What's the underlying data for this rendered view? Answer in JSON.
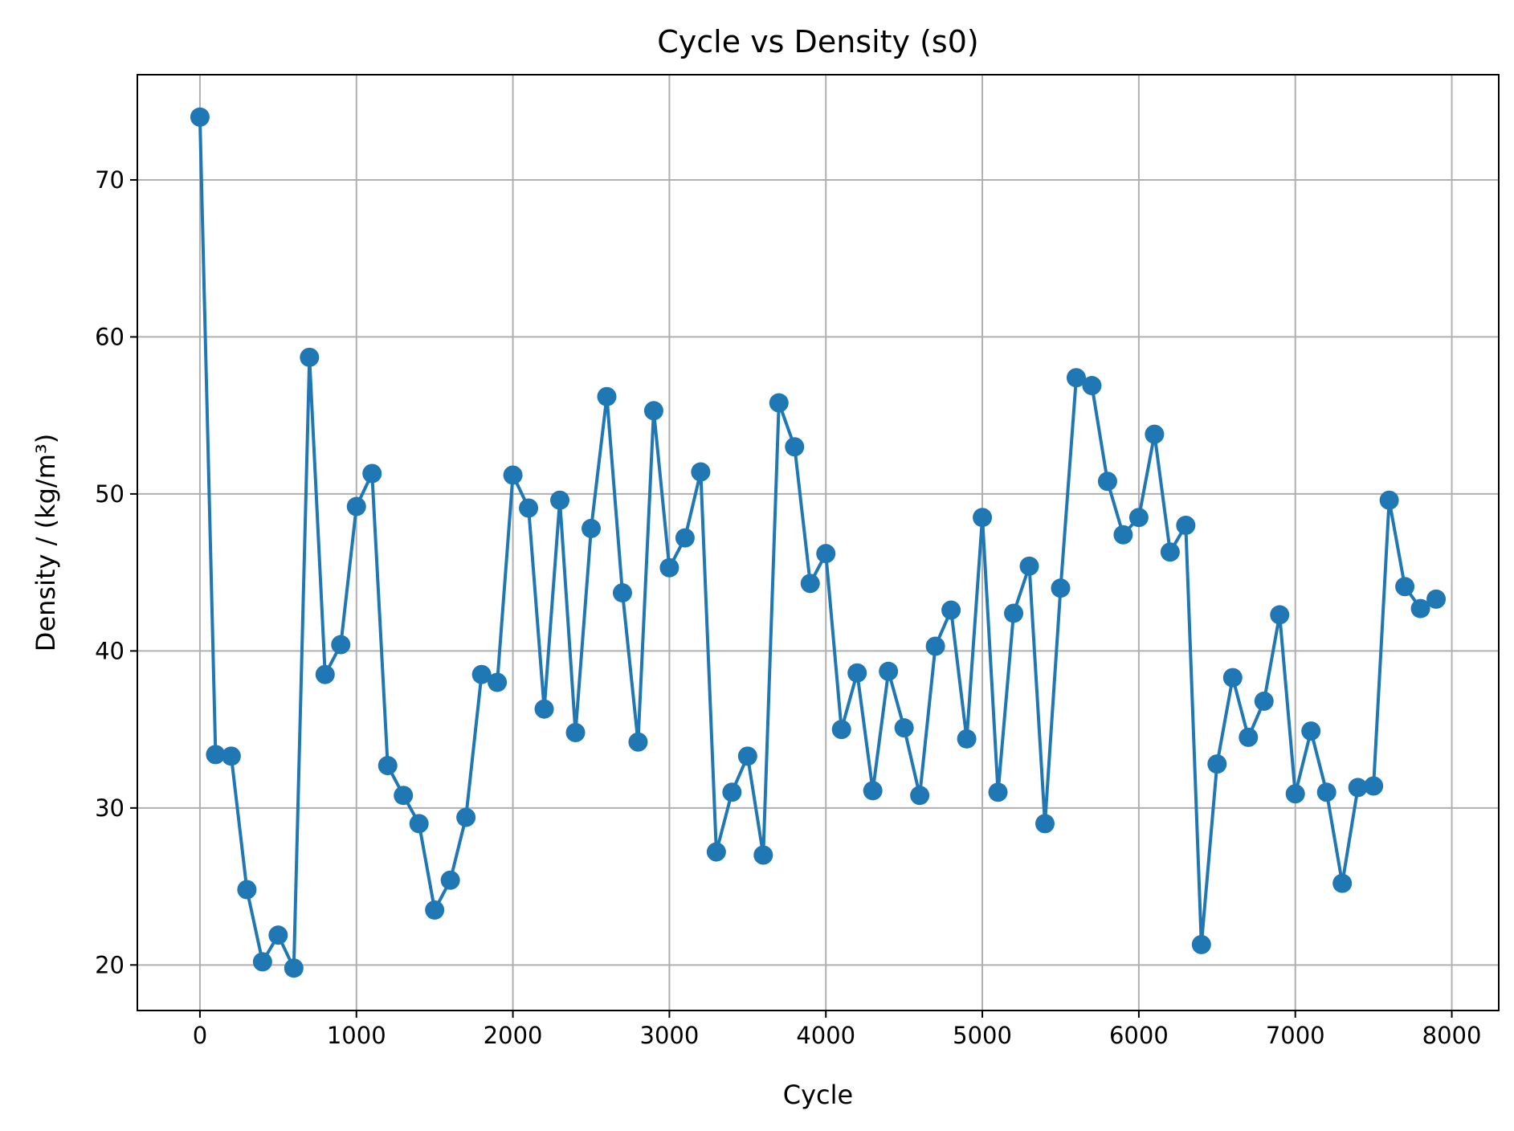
{
  "chart_data": {
    "type": "line",
    "title": "Cycle vs Density (s0)",
    "xlabel": "Cycle",
    "ylabel": "Density / (kg/m³)",
    "xlim": [
      -400,
      8300
    ],
    "ylim": [
      17.1,
      76.7
    ],
    "xticks": [
      0,
      1000,
      2000,
      3000,
      4000,
      5000,
      6000,
      7000,
      8000
    ],
    "yticks": [
      20,
      30,
      40,
      50,
      60,
      70
    ],
    "grid": true,
    "colors": {
      "series": "#1f77b4",
      "grid": "#b0b0b0",
      "axes": "#000000"
    },
    "marker": "circle",
    "x": [
      0,
      100,
      200,
      300,
      400,
      500,
      600,
      700,
      800,
      900,
      1000,
      1100,
      1200,
      1300,
      1400,
      1500,
      1600,
      1700,
      1800,
      1900,
      2000,
      2100,
      2200,
      2300,
      2400,
      2500,
      2600,
      2700,
      2800,
      2900,
      3000,
      3100,
      3200,
      3300,
      3400,
      3500,
      3600,
      3700,
      3800,
      3900,
      4000,
      4100,
      4200,
      4300,
      4400,
      4500,
      4600,
      4700,
      4800,
      4900,
      5000,
      5100,
      5200,
      5300,
      5400,
      5500,
      5600,
      5700,
      5800,
      5900,
      6000,
      6100,
      6200,
      6300,
      6400,
      6500,
      6600,
      6700,
      6800,
      6900,
      7000,
      7100,
      7200,
      7300,
      7400,
      7500,
      7600,
      7700,
      7800,
      7900
    ],
    "y": [
      74.0,
      33.4,
      33.3,
      24.8,
      20.2,
      21.9,
      19.8,
      58.7,
      38.5,
      40.4,
      49.2,
      51.3,
      32.7,
      30.8,
      29.0,
      23.5,
      25.4,
      29.4,
      38.5,
      38.0,
      51.2,
      49.1,
      36.3,
      49.6,
      34.8,
      47.8,
      56.2,
      43.7,
      34.2,
      55.3,
      45.3,
      47.2,
      51.4,
      27.2,
      31.0,
      33.3,
      27.0,
      55.8,
      53.0,
      44.3,
      46.2,
      35.0,
      38.6,
      31.1,
      38.7,
      35.1,
      30.8,
      40.3,
      42.6,
      34.4,
      48.5,
      31.0,
      42.4,
      45.4,
      29.0,
      44.0,
      57.4,
      56.9,
      50.8,
      47.4,
      48.5,
      53.8,
      46.3,
      48.0,
      21.3,
      32.8,
      38.3,
      34.5,
      36.8,
      42.3,
      30.9,
      34.9,
      31.0,
      25.2,
      31.3,
      31.4,
      49.6,
      44.1,
      42.7,
      43.3
    ]
  }
}
